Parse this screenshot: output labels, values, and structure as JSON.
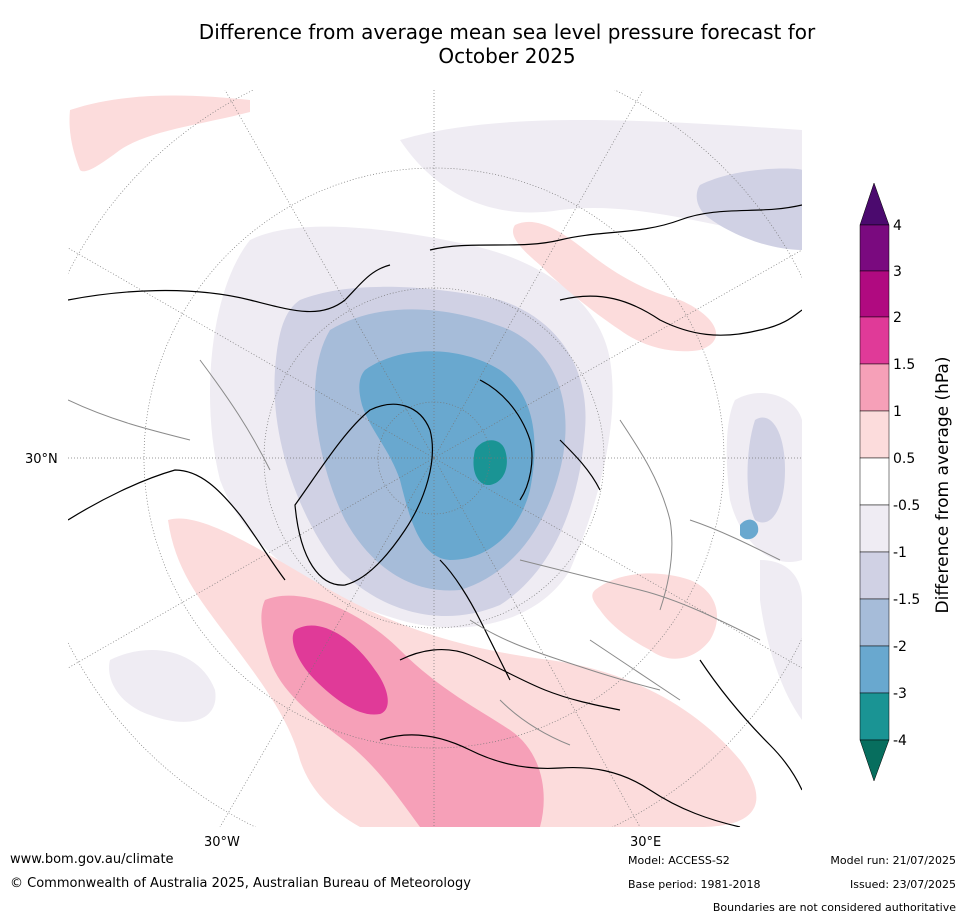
{
  "title_line1": "Difference from average mean sea level pressure forecast for",
  "title_line2": "October 2025",
  "map": {
    "lat_label": "30°N",
    "lon_label_left": "30°W",
    "lon_label_right": "30°E"
  },
  "colorbar": {
    "title": "Difference from average (hPa)",
    "ticks": [
      "4",
      "3",
      "2",
      "1.5",
      "1",
      "0.5",
      "-0.5",
      "-1",
      "-1.5",
      "-2",
      "-3",
      "-4"
    ],
    "colors": {
      "gt4": "#4b0a6e",
      "3to4": "#7a0a7f",
      "2to3": "#b00a80",
      "1.5to2": "#e03a98",
      "1to1.5": "#f6a0b8",
      "0.5to1": "#fcdcdc",
      "neutral": "#ffffff",
      "m0.5tom1": "#efecf3",
      "m1tom1.5": "#d0d1e4",
      "m1.5tom2": "#a6bcd9",
      "m2tom3": "#69a8cf",
      "m3tom4": "#1a9494",
      "ltm4": "#076e5e"
    }
  },
  "footer": {
    "url": "www.bom.gov.au/climate",
    "copyright": "© Commonwealth of Australia 2025, Australian Bureau of Meteorology",
    "model": "Model: ACCESS-S2",
    "base_period": "Base period: 1981-2018",
    "model_run": "Model run: 21/07/2025",
    "issued": "Issued: 23/07/2025",
    "disclaimer": "Boundaries are not considered authoritative"
  }
}
